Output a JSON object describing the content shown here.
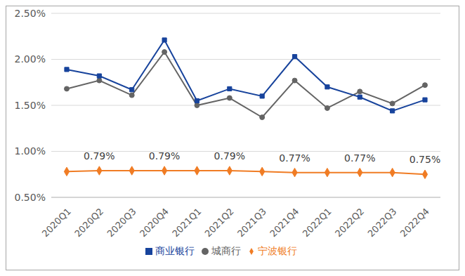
{
  "chart_data": {
    "type": "line",
    "categories": [
      "2020Q1",
      "2020Q2",
      "2020Q3",
      "2020Q4",
      "2021Q1",
      "2021Q2",
      "2021Q3",
      "2021Q4",
      "2022Q1",
      "2022Q2",
      "2022Q3",
      "2022Q4"
    ],
    "series": [
      {
        "name": "宁波银行",
        "color": "#f07c24",
        "marker": "diamond",
        "data_labels": true,
        "values": [
          0.78,
          0.79,
          0.79,
          0.79,
          0.79,
          0.79,
          0.78,
          0.77,
          0.77,
          0.77,
          0.77,
          0.75
        ],
        "value_labels": [
          null,
          "0.79%",
          null,
          "0.79%",
          null,
          "0.79%",
          null,
          "0.77%",
          null,
          "0.77%",
          null,
          "0.75%"
        ]
      },
      {
        "name": "城商行",
        "color": "#646464",
        "marker": "circle",
        "values": [
          1.68,
          1.77,
          1.61,
          2.08,
          1.5,
          1.58,
          1.37,
          1.77,
          1.47,
          1.65,
          1.52,
          1.72
        ]
      },
      {
        "name": "商业银行",
        "color": "#17439c",
        "marker": "square",
        "values": [
          1.89,
          1.82,
          1.67,
          2.21,
          1.55,
          1.68,
          1.6,
          2.03,
          1.7,
          1.59,
          1.44,
          1.56
        ]
      }
    ],
    "ylim": [
      0.5,
      2.5
    ],
    "yticks": [
      {
        "value": 0.5,
        "label": "0.50%"
      },
      {
        "value": 1.0,
        "label": "1.00%"
      },
      {
        "value": 1.5,
        "label": "1.50%"
      },
      {
        "value": 2.0,
        "label": "2.00%"
      },
      {
        "value": 2.5,
        "label": "2.50%"
      }
    ],
    "grid": true,
    "legend": "bottom"
  }
}
